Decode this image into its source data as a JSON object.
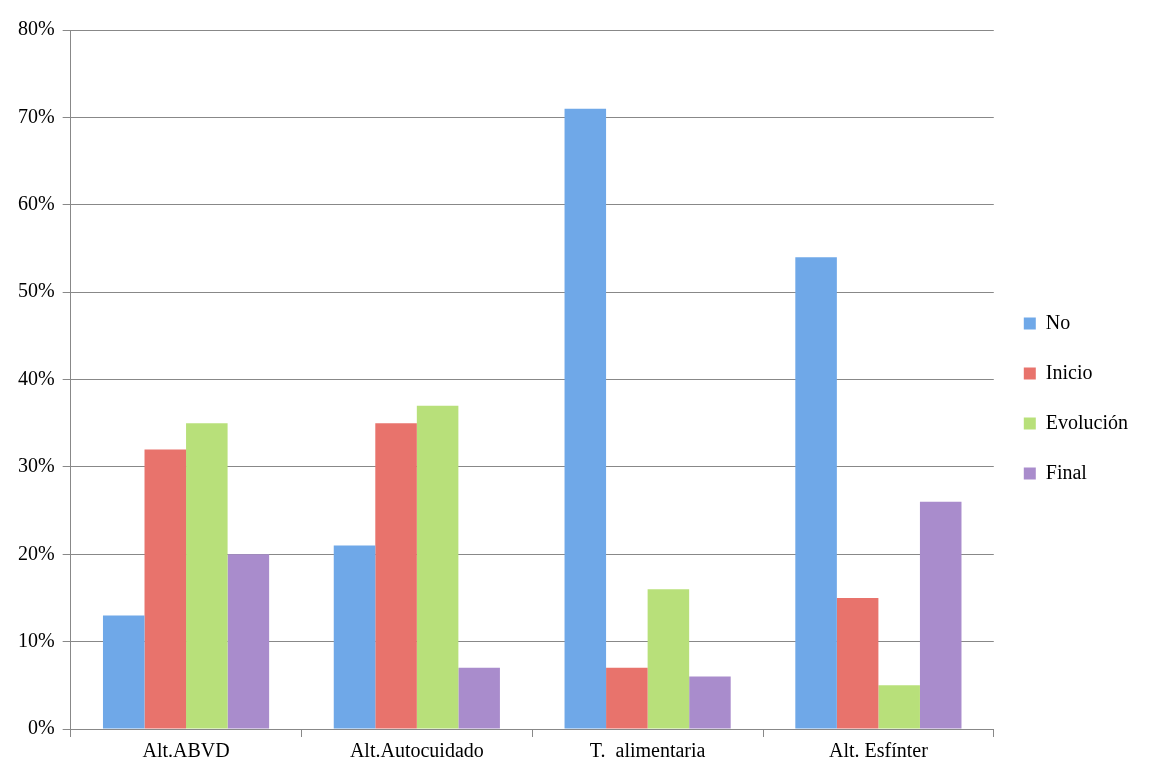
{
  "chart_data": {
    "type": "bar",
    "categories": [
      "Alt.ABVD",
      "Alt.Autocuidado",
      "T.  alimentaria",
      "Alt. Esfínter"
    ],
    "series": [
      {
        "name": "No",
        "color": "#6fa8e8",
        "values": [
          13,
          21,
          71,
          54
        ]
      },
      {
        "name": "Inicio",
        "color": "#e8736c",
        "values": [
          32,
          35,
          7,
          15
        ]
      },
      {
        "name": "Evolución",
        "color": "#b8e07a",
        "values": [
          35,
          37,
          16,
          5
        ]
      },
      {
        "name": "Final",
        "color": "#a98ccc",
        "values": [
          20,
          7,
          6,
          26
        ]
      }
    ],
    "ylim": [
      0,
      80
    ],
    "yticks": [
      {
        "value": 0,
        "label": "0%"
      },
      {
        "value": 10,
        "label": "10%"
      },
      {
        "value": 20,
        "label": "20%"
      },
      {
        "value": 30,
        "label": "30%"
      },
      {
        "value": 40,
        "label": "40%"
      },
      {
        "value": 50,
        "label": "50%"
      },
      {
        "value": 60,
        "label": "60%"
      },
      {
        "value": 70,
        "label": "70%"
      },
      {
        "value": 80,
        "label": "80%"
      }
    ],
    "grid": "y",
    "legend": "right"
  }
}
